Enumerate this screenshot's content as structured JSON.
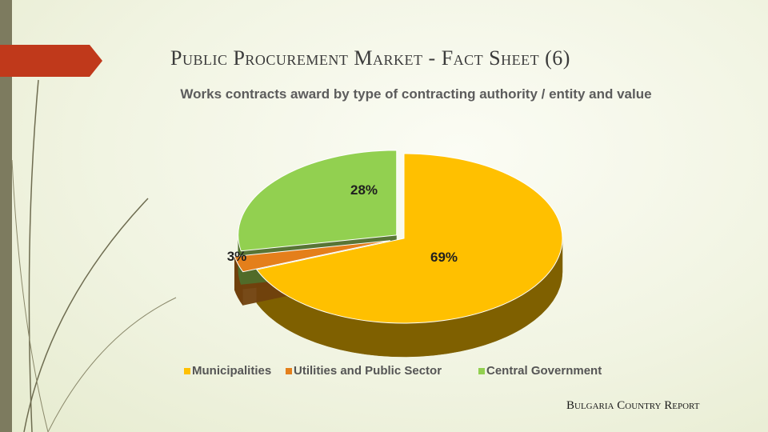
{
  "slide": {
    "title": "Public Procurement Market - Fact Sheet  (6)",
    "footer": "Bulgaria Country Report"
  },
  "chart_data": {
    "type": "pie",
    "title": "Works contracts award by type of contracting authority / entity and value",
    "series": [
      {
        "name": "Municipalities",
        "value": 69,
        "label": "69%",
        "color": "#ffc000",
        "side_color": "#7f6000"
      },
      {
        "name": "Utilities and Public Sector",
        "value": 3,
        "label": "3%",
        "color": "#e47f1b",
        "side_color": "#70400d"
      },
      {
        "name": "Central Government",
        "value": 28,
        "label": "28%",
        "color": "#92d050",
        "side_color": "#4f6e2b"
      }
    ],
    "legend_position": "bottom",
    "exploded": true,
    "three_d": true
  },
  "colors": {
    "title_arrow": "#c0391b",
    "left_bar": "#7d7b5f"
  }
}
